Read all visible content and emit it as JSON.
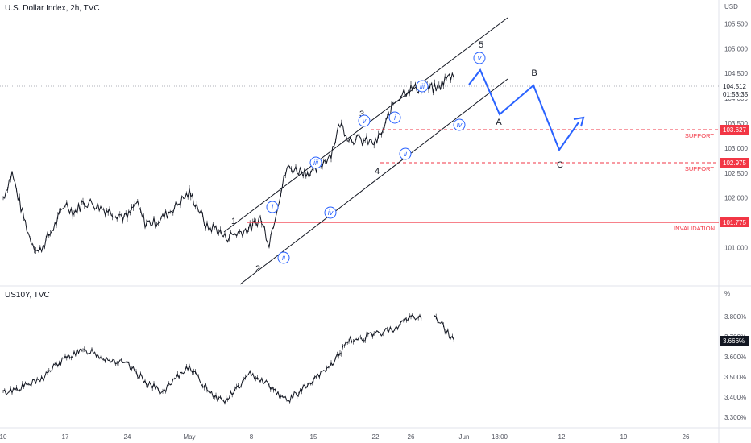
{
  "chart_data": [
    {
      "type": "line",
      "title": "U.S. Dollar Index, 2h, TVC",
      "currency_label": "USD",
      "y_ticks": [
        "105.500",
        "105.000",
        "104.500",
        "104.000",
        "103.500",
        "103.000",
        "102.500",
        "102.000",
        "101.500",
        "101.000"
      ],
      "ylim": [
        100.7,
        106.0
      ],
      "x_ticks": [
        "10",
        "17",
        "24",
        "May",
        "8",
        "15",
        "22",
        "26",
        "Jun",
        "13:00",
        "12",
        "19",
        "26"
      ],
      "x_tick_dates": [
        "2023-04-10",
        "2023-04-17",
        "2023-04-24",
        "2023-05-01",
        "2023-05-08",
        "2023-05-15",
        "2023-05-22",
        "2023-05-26",
        "2023-06-01",
        "2023-06-05",
        "2023-06-12",
        "2023-06-19",
        "2023-06-26"
      ],
      "last_price": "104.512",
      "countdown": "01:53:35",
      "series_points": [
        {
          "date": "2023-04-10",
          "value": 102.0
        },
        {
          "date": "2023-04-11",
          "value": 102.5
        },
        {
          "date": "2023-04-12",
          "value": 101.8
        },
        {
          "date": "2023-04-13",
          "value": 101.2
        },
        {
          "date": "2023-04-14",
          "value": 100.9
        },
        {
          "date": "2023-04-16",
          "value": 101.5
        },
        {
          "date": "2023-04-17",
          "value": 101.9
        },
        {
          "date": "2023-04-18",
          "value": 101.7
        },
        {
          "date": "2023-04-19",
          "value": 101.9
        },
        {
          "date": "2023-04-20",
          "value": 101.9
        },
        {
          "date": "2023-04-21",
          "value": 101.8
        },
        {
          "date": "2023-04-24",
          "value": 101.6
        },
        {
          "date": "2023-04-25",
          "value": 101.9
        },
        {
          "date": "2023-04-26",
          "value": 101.5
        },
        {
          "date": "2023-04-27",
          "value": 101.5
        },
        {
          "date": "2023-04-28",
          "value": 101.6
        },
        {
          "date": "2023-05-01",
          "value": 102.1
        },
        {
          "date": "2023-05-02",
          "value": 101.8
        },
        {
          "date": "2023-05-03",
          "value": 101.4
        },
        {
          "date": "2023-05-04",
          "value": 101.4
        },
        {
          "date": "2023-05-05",
          "value": 101.2
        },
        {
          "date": "2023-05-08",
          "value": 101.4
        },
        {
          "date": "2023-05-09",
          "value": 101.6
        },
        {
          "date": "2023-05-10",
          "value": 101.1
        },
        {
          "date": "2023-05-11",
          "value": 101.9
        },
        {
          "date": "2023-05-12",
          "value": 102.6
        },
        {
          "date": "2023-05-15",
          "value": 102.5
        },
        {
          "date": "2023-05-16",
          "value": 102.7
        },
        {
          "date": "2023-05-17",
          "value": 102.9
        },
        {
          "date": "2023-05-18",
          "value": 103.5
        },
        {
          "date": "2023-05-19",
          "value": 103.2
        },
        {
          "date": "2023-05-22",
          "value": 103.1
        },
        {
          "date": "2023-05-23",
          "value": 103.4
        },
        {
          "date": "2023-05-24",
          "value": 103.9
        },
        {
          "date": "2023-05-25",
          "value": 104.1
        },
        {
          "date": "2023-05-26",
          "value": 104.2
        },
        {
          "date": "2023-05-29",
          "value": 104.2
        },
        {
          "date": "2023-05-30",
          "value": 104.4
        },
        {
          "date": "2023-05-31",
          "value": 104.5
        }
      ],
      "projection": [
        {
          "date": "2023-06-01",
          "value": 104.8
        },
        {
          "date": "2023-06-03",
          "value": 103.8
        },
        {
          "date": "2023-06-07",
          "value": 104.6
        },
        {
          "date": "2023-06-10",
          "value": 103.0
        },
        {
          "date": "2023-06-14",
          "value": 103.5
        }
      ],
      "levels": [
        {
          "value": "103.627",
          "label": "SUPPORT",
          "color": "#f23645",
          "style": "dashed"
        },
        {
          "value": "102.975",
          "label": "SUPPORT",
          "color": "#f23645",
          "style": "dashed"
        },
        {
          "value": "101.775",
          "label": "INVALIDATION",
          "color": "#f23645",
          "style": "solid"
        }
      ],
      "wave_labels": [
        "1",
        "2",
        "3",
        "4",
        "5"
      ],
      "circled_labels": [
        "i",
        "ii",
        "iii",
        "iv",
        "v",
        "i",
        "ii",
        "iii",
        "iv",
        "v"
      ],
      "correction_labels": [
        "A",
        "B",
        "C"
      ],
      "colors": {
        "price": "#131722",
        "projection": "#2962ff",
        "level": "#f23645"
      }
    },
    {
      "type": "line",
      "title": "US10Y, TVC",
      "unit_label": "%",
      "y_ticks": [
        "3.800%",
        "3.700%",
        "3.600%",
        "3.500%",
        "3.400%",
        "3.300%"
      ],
      "ylim": [
        3.27,
        3.9
      ],
      "last_value": "3.666%",
      "series_points": [
        {
          "date": "2023-04-10",
          "value": 3.42
        },
        {
          "date": "2023-04-12",
          "value": 3.45
        },
        {
          "date": "2023-04-14",
          "value": 3.48
        },
        {
          "date": "2023-04-16",
          "value": 3.56
        },
        {
          "date": "2023-04-18",
          "value": 3.62
        },
        {
          "date": "2023-04-20",
          "value": 3.63
        },
        {
          "date": "2023-04-21",
          "value": 3.6
        },
        {
          "date": "2023-04-24",
          "value": 3.56
        },
        {
          "date": "2023-04-26",
          "value": 3.48
        },
        {
          "date": "2023-04-28",
          "value": 3.42
        },
        {
          "date": "2023-05-01",
          "value": 3.56
        },
        {
          "date": "2023-05-02",
          "value": 3.49
        },
        {
          "date": "2023-05-04",
          "value": 3.4
        },
        {
          "date": "2023-05-05",
          "value": 3.38
        },
        {
          "date": "2023-05-08",
          "value": 3.52
        },
        {
          "date": "2023-05-10",
          "value": 3.46
        },
        {
          "date": "2023-05-12",
          "value": 3.38
        },
        {
          "date": "2023-05-15",
          "value": 3.48
        },
        {
          "date": "2023-05-17",
          "value": 3.56
        },
        {
          "date": "2023-05-19",
          "value": 3.68
        },
        {
          "date": "2023-05-22",
          "value": 3.71
        },
        {
          "date": "2023-05-24",
          "value": 3.74
        },
        {
          "date": "2023-05-26",
          "value": 3.8
        },
        {
          "date": "2023-05-29",
          "value": 3.79
        },
        {
          "date": "2023-05-30",
          "value": 3.73
        },
        {
          "date": "2023-05-31",
          "value": 3.67
        }
      ]
    }
  ]
}
